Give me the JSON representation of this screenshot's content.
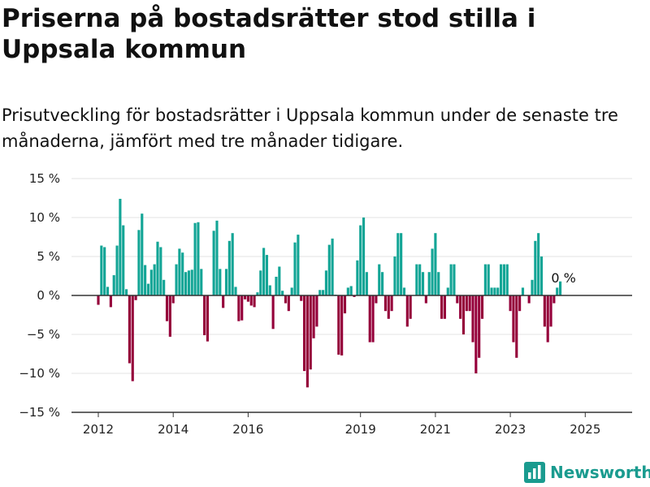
{
  "header": {
    "title": "Priserna på bostadsrätter stod stilla i Uppsala kommun",
    "subtitle": "Prisutveckling för bostadsrätter i Uppsala kommun under de senaste tre månaderna, jämfört med tre månader tidigare."
  },
  "brand": {
    "name": "Newsworthy"
  },
  "colors": {
    "positive": "#13a596",
    "negative": "#95003a",
    "grid": "#e3e3e3",
    "zero": "#333333"
  },
  "chart_data": {
    "type": "bar",
    "title": "Priserna på bostadsrätter stod stilla i Uppsala kommun",
    "subtitle": "Prisutveckling för bostadsrätter i Uppsala kommun under de senaste tre månaderna, jämfört med tre månader tidigare.",
    "ylim": [
      -15,
      15
    ],
    "yticks": [
      15,
      10,
      5,
      0,
      -5,
      -10,
      -15
    ],
    "ytick_labels": [
      "15 %",
      "10 %",
      "5 %",
      "0 %",
      "−5 %",
      "−10 %",
      "−15 %"
    ],
    "xticks": [
      2012,
      2014,
      2016,
      2019,
      2021,
      2023,
      2025
    ],
    "xtick_labels": [
      "2012",
      "2014",
      "2016",
      "2019",
      "2021",
      "2023",
      "2025"
    ],
    "xlim": [
      2011.5,
      2026.0
    ],
    "start_year": 2012,
    "grid": true,
    "annotation": {
      "text": "0 %",
      "value": 0
    },
    "values": [
      -1.2,
      6.4,
      6.2,
      1.1,
      -1.5,
      2.6,
      6.4,
      12.4,
      9.0,
      0.8,
      -8.7,
      -11.0,
      -0.6,
      8.4,
      10.5,
      3.9,
      1.5,
      3.3,
      4.0,
      6.9,
      6.2,
      2.0,
      -3.3,
      -5.3,
      -1.0,
      4.0,
      6.0,
      5.5,
      3.0,
      3.2,
      3.3,
      9.3,
      9.4,
      3.4,
      -5.1,
      -5.9,
      0.0,
      8.3,
      9.6,
      3.4,
      -1.6,
      3.4,
      7.0,
      8.0,
      1.1,
      -3.3,
      -3.2,
      -0.5,
      -0.8,
      -1.3,
      -1.5,
      0.4,
      3.2,
      6.1,
      5.2,
      1.3,
      -4.3,
      2.4,
      3.7,
      0.6,
      -1.0,
      -2.0,
      1.0,
      6.8,
      7.8,
      -0.7,
      -9.7,
      -11.8,
      -9.5,
      -5.5,
      -4.0,
      0.7,
      0.7,
      3.2,
      6.5,
      7.3,
      0.1,
      -7.6,
      -7.7,
      -2.3,
      1.0,
      1.2,
      -0.2,
      4.5,
      9.0,
      10.0,
      3.0,
      -6.0,
      -6.0,
      -1.0,
      4.0,
      3.0,
      -2.0,
      -3.0,
      -2.0,
      5.0,
      8.0,
      8.0,
      1.0,
      -4.0,
      -3.0,
      0.0,
      4.0,
      4.0,
      3.0,
      -1.0,
      3.0,
      6.0,
      8.0,
      3.0,
      -3.0,
      -3.0,
      1.0,
      4.0,
      4.0,
      -1.0,
      -3.0,
      -5.0,
      -2.0,
      -2.0,
      -6.0,
      -10.0,
      -8.0,
      -3.0,
      4.0,
      4.0,
      1.0,
      1.0,
      1.0,
      4.0,
      4.0,
      4.0,
      -2.0,
      -6.0,
      -8.0,
      -2.0,
      1.0,
      0.0,
      -1.0,
      2.0,
      7.0,
      8.0,
      5.0,
      -4.0,
      -6.0,
      -4.0,
      -1.0,
      1.0,
      1.8
    ]
  }
}
